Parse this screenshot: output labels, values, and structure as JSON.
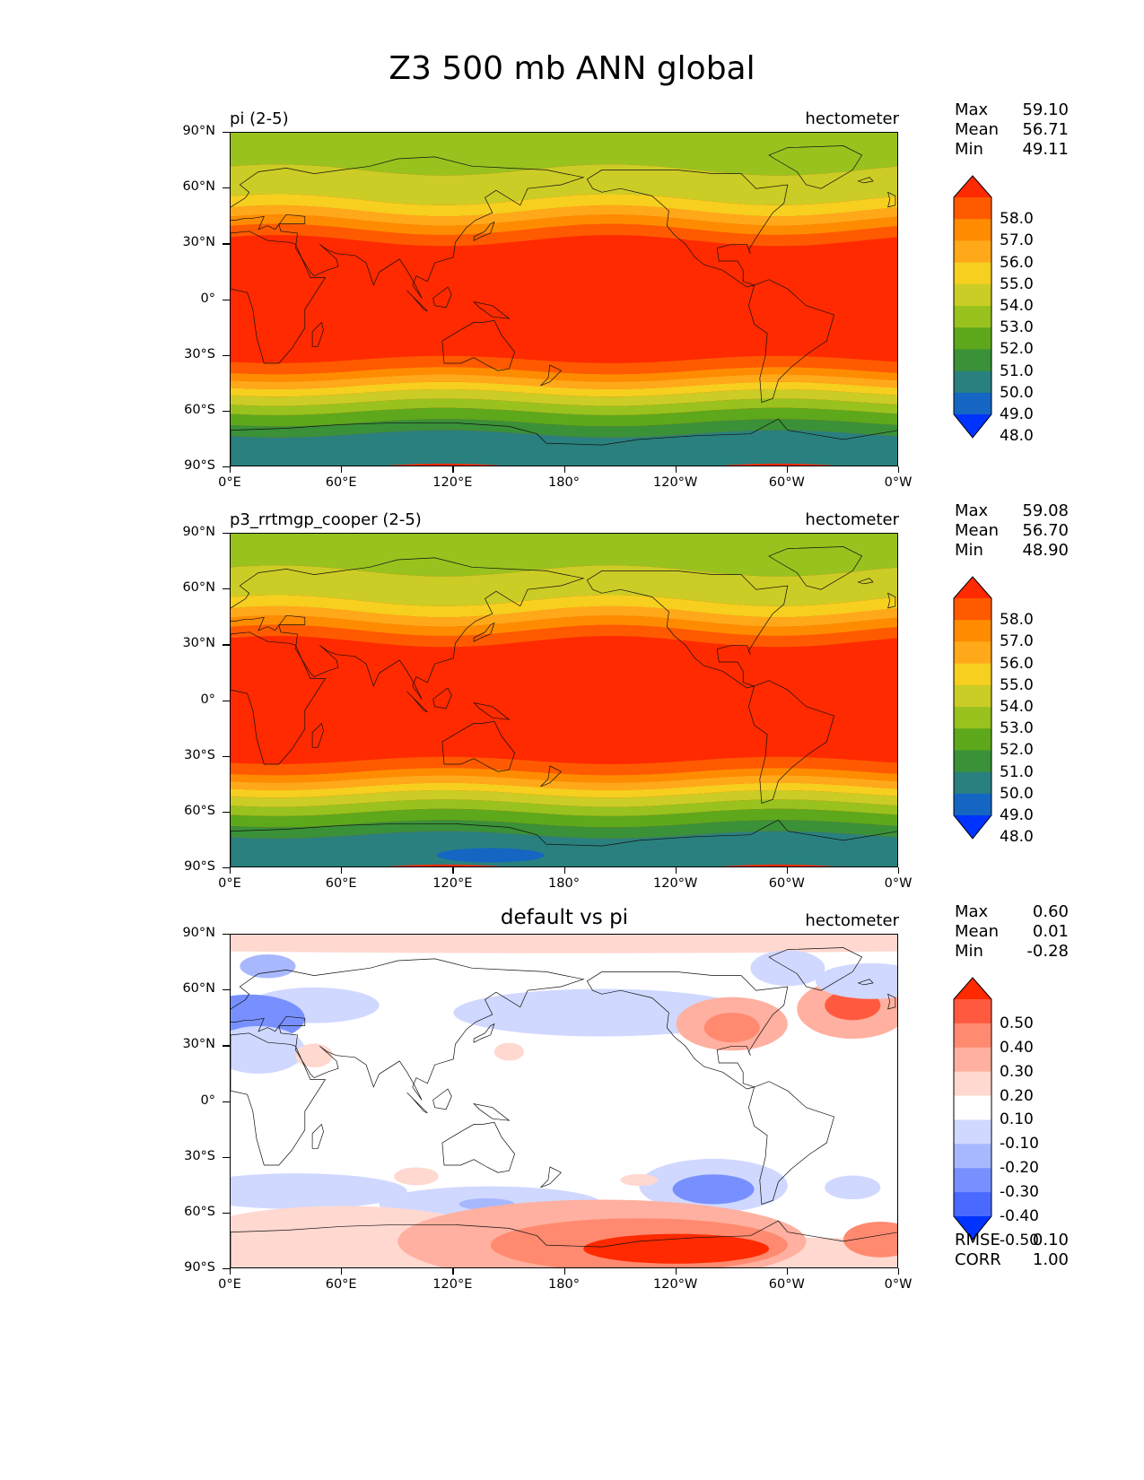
{
  "title": "Z3 500 mb ANN global",
  "lat_ticks": [
    "90°N",
    "60°N",
    "30°N",
    "0°",
    "30°S",
    "60°S",
    "90°S"
  ],
  "lon_ticks": [
    "0°E",
    "60°E",
    "120°E",
    "180°",
    "120°W",
    "60°W",
    "0°W"
  ],
  "panels": [
    {
      "title": "pi (2-5)",
      "units": "hectometer",
      "stats": {
        "max_label": "Max",
        "max": "59.10",
        "mean_label": "Mean",
        "mean": "56.71",
        "min_label": "Min",
        "min": "49.11"
      },
      "colorbar_labels": [
        "58.0",
        "57.0",
        "56.0",
        "55.0",
        "54.0",
        "53.0",
        "52.0",
        "51.0",
        "50.0",
        "49.0",
        "48.0"
      ],
      "colorbar_colors": [
        "#ff2a00",
        "#ff5a00",
        "#ff8c00",
        "#ffa91a",
        "#f6cf1f",
        "#cccc26",
        "#99c21f",
        "#5ea81c",
        "#3a9138",
        "#2a807e",
        "#1466c2",
        "#0033ff"
      ]
    },
    {
      "title": "p3_rrtmgp_cooper (2-5)",
      "units": "hectometer",
      "stats": {
        "max_label": "Max",
        "max": "59.08",
        "mean_label": "Mean",
        "mean": "56.70",
        "min_label": "Min",
        "min": "48.90"
      },
      "colorbar_labels": [
        "58.0",
        "57.0",
        "56.0",
        "55.0",
        "54.0",
        "53.0",
        "52.0",
        "51.0",
        "50.0",
        "49.0",
        "48.0"
      ],
      "colorbar_colors": [
        "#ff2a00",
        "#ff5a00",
        "#ff8c00",
        "#ffa91a",
        "#f6cf1f",
        "#cccc26",
        "#99c21f",
        "#5ea81c",
        "#3a9138",
        "#2a807e",
        "#1466c2",
        "#0033ff"
      ]
    },
    {
      "title": "default vs pi",
      "units": "hectometer",
      "stats": {
        "max_label": "Max",
        "max": "0.60",
        "mean_label": "Mean",
        "mean": "0.01",
        "min_label": "Min",
        "min": "-0.28"
      },
      "colorbar_labels": [
        "0.50",
        "0.40",
        "0.30",
        "0.20",
        "0.10",
        "-0.10",
        "-0.20",
        "-0.30",
        "-0.40",
        "-0.50"
      ],
      "colorbar_colors": [
        "#ff2a00",
        "#ff5a40",
        "#ff8a70",
        "#ffb0a0",
        "#ffd8d0",
        "#ffffff",
        "#d0d8ff",
        "#a8b8ff",
        "#7890ff",
        "#4a6aff",
        "#0033ff"
      ],
      "extra_stats": {
        "rmse_label": "RMSE",
        "rmse": "0.10",
        "corr_label": "CORR",
        "corr": "1.00"
      }
    }
  ]
}
